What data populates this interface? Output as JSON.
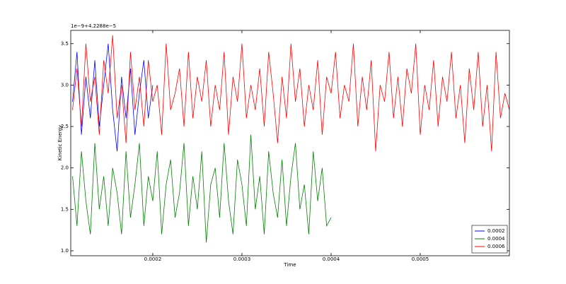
{
  "chart_data": {
    "type": "line",
    "offset_text": "1e−9+4.2288e−5",
    "x_label": "Time",
    "y_label": "Kinetic Energy",
    "xlim": [
      0.000108,
      0.0006
    ],
    "xticks": [
      0.0002,
      0.0003,
      0.0004,
      0.0005
    ],
    "ylim": [
      0.94,
      3.66
    ],
    "yticks": [
      {
        "value": 1,
        "label": "1.0"
      },
      1.5,
      {
        "value": 2,
        "label": "2.0"
      },
      2.5,
      {
        "value": 3,
        "label": "3.0"
      },
      3.5
    ],
    "legend": "lower right",
    "series": [
      {
        "name": "0.0002",
        "color": "#0000ff",
        "x": [
          0.00011,
          0.000115,
          0.00012,
          0.000125,
          0.00013,
          0.000135,
          0.00014,
          0.000145,
          0.00015,
          0.000155,
          0.00016,
          0.000165,
          0.00017,
          0.000175,
          0.00018,
          0.000185,
          0.00019,
          0.000195,
          0.0002
        ],
        "values": [
          2.8,
          3.4,
          2.4,
          3.1,
          2.6,
          3.3,
          2.5,
          3.0,
          3.5,
          2.7,
          2.2,
          3.1,
          2.6,
          3.2,
          2.4,
          2.9,
          3.3,
          2.6,
          3.0
        ]
      },
      {
        "name": "0.0004",
        "color": "#008000",
        "x": [
          0.00011,
          0.000115,
          0.00012,
          0.000125,
          0.00013,
          0.000135,
          0.00014,
          0.000145,
          0.00015,
          0.000155,
          0.00016,
          0.000165,
          0.00017,
          0.000175,
          0.00018,
          0.000185,
          0.00019,
          0.000195,
          0.0002,
          0.000205,
          0.00021,
          0.000215,
          0.00022,
          0.000225,
          0.00023,
          0.000235,
          0.00024,
          0.000245,
          0.00025,
          0.000255,
          0.00026,
          0.000265,
          0.00027,
          0.000275,
          0.00028,
          0.000285,
          0.00029,
          0.000295,
          0.0003,
          0.000305,
          0.00031,
          0.000315,
          0.00032,
          0.000325,
          0.00033,
          0.000335,
          0.00034,
          0.000345,
          0.00035,
          0.000355,
          0.00036,
          0.000365,
          0.00037,
          0.000375,
          0.00038,
          0.000385,
          0.00039,
          0.000395,
          0.0004
        ],
        "values": [
          1.9,
          1.3,
          2.2,
          1.6,
          1.2,
          2.3,
          1.5,
          1.9,
          1.3,
          2.0,
          1.7,
          1.2,
          2.2,
          1.4,
          1.8,
          2.3,
          1.3,
          1.9,
          1.6,
          2.2,
          1.2,
          1.8,
          2.1,
          1.4,
          1.7,
          2.3,
          1.3,
          1.9,
          1.5,
          2.2,
          1.1,
          1.8,
          2.0,
          1.4,
          2.3,
          1.6,
          1.2,
          2.1,
          1.8,
          1.3,
          2.4,
          1.5,
          1.9,
          1.2,
          2.2,
          1.7,
          1.4,
          2.1,
          1.3,
          1.9,
          2.3,
          1.5,
          1.8,
          1.2,
          2.2,
          1.6,
          2.0,
          1.3,
          1.4
        ]
      },
      {
        "name": "0.0006",
        "color": "#ff0000",
        "x": [
          0.00011,
          0.000115,
          0.00012,
          0.000125,
          0.00013,
          0.000135,
          0.00014,
          0.000145,
          0.00015,
          0.000155,
          0.00016,
          0.000165,
          0.00017,
          0.000175,
          0.00018,
          0.000185,
          0.00019,
          0.000195,
          0.0002,
          0.000205,
          0.00021,
          0.000215,
          0.00022,
          0.000225,
          0.00023,
          0.000235,
          0.00024,
          0.000245,
          0.00025,
          0.000255,
          0.00026,
          0.000265,
          0.00027,
          0.000275,
          0.00028,
          0.000285,
          0.00029,
          0.000295,
          0.0003,
          0.000305,
          0.00031,
          0.000315,
          0.00032,
          0.000325,
          0.00033,
          0.000335,
          0.00034,
          0.000345,
          0.00035,
          0.000355,
          0.00036,
          0.000365,
          0.00037,
          0.000375,
          0.00038,
          0.000385,
          0.00039,
          0.000395,
          0.0004,
          0.000405,
          0.00041,
          0.000415,
          0.00042,
          0.000425,
          0.00043,
          0.000435,
          0.00044,
          0.000445,
          0.00045,
          0.000455,
          0.00046,
          0.000465,
          0.00047,
          0.000475,
          0.00048,
          0.000485,
          0.00049,
          0.000495,
          0.0005,
          0.000505,
          0.00051,
          0.000515,
          0.00052,
          0.000525,
          0.00053,
          0.000535,
          0.00054,
          0.000545,
          0.00055,
          0.000555,
          0.00056,
          0.000565,
          0.00057,
          0.000575,
          0.00058,
          0.000585,
          0.00059,
          0.000595,
          0.0006
        ],
        "values": [
          2.7,
          3.2,
          2.5,
          3.5,
          2.8,
          3.1,
          2.4,
          3.3,
          2.9,
          3.6,
          2.6,
          3.0,
          2.3,
          3.4,
          2.7,
          3.1,
          2.5,
          3.3,
          2.8,
          3.0,
          2.4,
          3.5,
          2.7,
          2.9,
          3.2,
          2.5,
          3.4,
          2.6,
          3.1,
          2.8,
          3.3,
          2.5,
          3.0,
          2.7,
          3.4,
          2.4,
          3.1,
          2.8,
          3.5,
          2.6,
          3.0,
          2.7,
          3.2,
          2.5,
          3.4,
          2.9,
          2.3,
          3.1,
          2.6,
          3.5,
          2.8,
          3.2,
          2.5,
          3.0,
          2.7,
          3.3,
          2.4,
          3.1,
          2.9,
          3.4,
          2.6,
          3.0,
          2.8,
          3.5,
          2.5,
          3.1,
          2.7,
          3.3,
          2.2,
          3.0,
          2.8,
          3.4,
          2.6,
          3.1,
          2.5,
          3.2,
          2.9,
          3.5,
          2.4,
          3.0,
          2.7,
          3.3,
          2.5,
          3.1,
          2.8,
          3.4,
          2.6,
          3.0,
          2.3,
          3.2,
          2.7,
          3.4,
          2.5,
          3.0,
          2.2,
          3.4,
          2.6,
          2.9,
          2.7
        ]
      }
    ]
  }
}
